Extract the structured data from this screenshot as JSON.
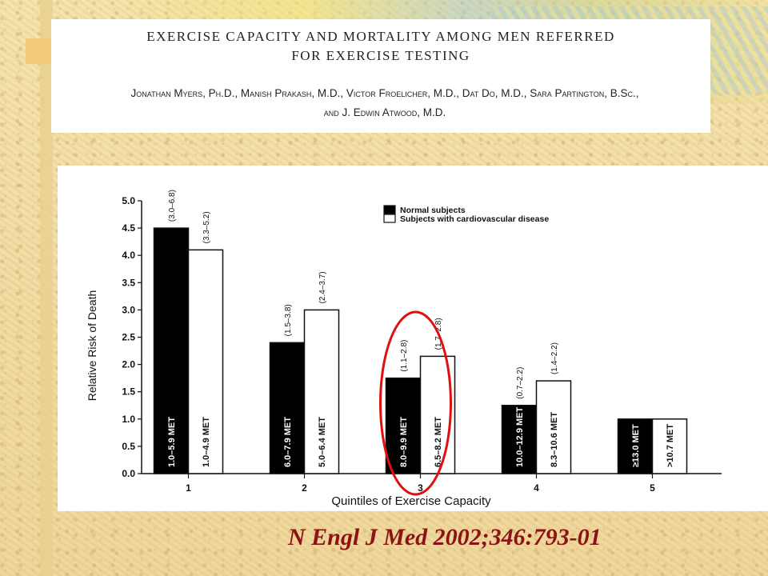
{
  "header": {
    "title_line1": "EXERCISE CAPACITY AND MORTALITY AMONG MEN REFERRED",
    "title_line2": "FOR EXERCISE TESTING",
    "authors_line1": "Jonathan Myers, Ph.D., Manish Prakash, M.D., Victor Froelicher, M.D., Dat Do, M.D., Sara Partington, B.Sc.,",
    "authors_line2": "and J. Edwin Atwood, M.D."
  },
  "citation": "N Engl J Med 2002;346:793-01",
  "colors": {
    "normal_bar": "#000000",
    "cvd_bar": "#ffffff",
    "highlight": "#e01010",
    "citation": "#8b1313"
  },
  "chart_data": {
    "type": "bar",
    "xlabel": "Quintiles of Exercise Capacity",
    "ylabel": "Relative Risk of Death",
    "ylim": [
      0,
      5.0
    ],
    "yticks": [
      "0.0",
      "0.5",
      "1.0",
      "1.5",
      "2.0",
      "2.5",
      "3.0",
      "3.5",
      "4.0",
      "4.5",
      "5.0"
    ],
    "categories": [
      "1",
      "2",
      "3",
      "4",
      "5"
    ],
    "legend_position": "top-right",
    "grid": false,
    "series": [
      {
        "name": "Normal subjects",
        "values": [
          4.5,
          2.4,
          1.75,
          1.25,
          1.0
        ],
        "bar_labels": [
          "1.0–5.9 MET",
          "6.0–7.9 MET",
          "8.0–9.9 MET",
          "10.0–12.9 MET",
          "≥13.0 MET"
        ],
        "ci_labels": [
          "(3.0–6.8)",
          "(1.5–3.8)",
          "(1.1–2.8)",
          "(0.7–2.2)",
          ""
        ]
      },
      {
        "name": "Subjects with cardiovascular disease",
        "values": [
          4.1,
          3.0,
          2.15,
          1.7,
          1.0
        ],
        "bar_labels": [
          "1.0–4.9 MET",
          "5.0–6.4 MET",
          "6.5–8.2 MET",
          "8.3–10.6 MET",
          ">10.7 MET"
        ],
        "ci_labels": [
          "(3.3–5.2)",
          "(2.4–3.7)",
          "(1.7–2.8)",
          "(1.4–2.2)",
          ""
        ]
      }
    ],
    "highlighted_category": "3"
  }
}
